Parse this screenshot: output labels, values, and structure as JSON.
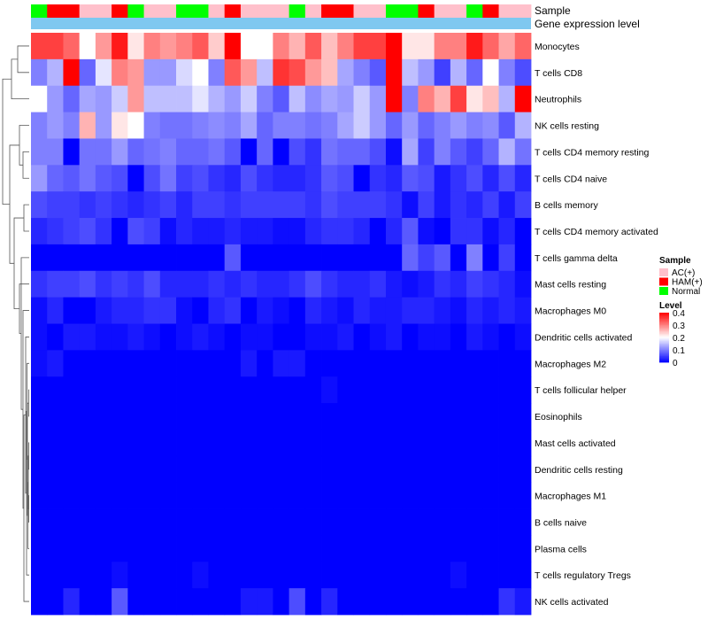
{
  "chart_data": {
    "type": "heatmap",
    "annotation_rows": [
      "Sample",
      "Gene expression level"
    ],
    "sample_groups": [
      "AC(+)",
      "HAM(+)",
      "Normal"
    ],
    "group_colors": {
      "AC(+)": "#FFC0CB",
      "HAM(+)": "#FF0000",
      "Normal": "#00FF00"
    },
    "expression_bar_color": "#7FC8F0",
    "columns": [
      "N",
      "H",
      "H",
      "A",
      "A",
      "H",
      "N",
      "A",
      "A",
      "N",
      "N",
      "A",
      "H",
      "A",
      "A",
      "A",
      "N",
      "A",
      "H",
      "H",
      "A",
      "A",
      "N",
      "N",
      "H",
      "A",
      "A",
      "N",
      "H",
      "A",
      "A"
    ],
    "rows": [
      "Monocytes",
      "T cells CD8",
      "Neutrophils",
      "NK cells resting",
      "T cells CD4 memory resting",
      "T cells CD4 naive",
      "B cells memory",
      "T cells CD4 memory activated",
      "T cells gamma delta",
      "Mast cells resting",
      "Macrophages M0",
      "Dendritic cells activated",
      "Macrophages M2",
      "T cells follicular helper",
      "Eosinophils",
      "Mast cells activated",
      "Dendritic cells resting",
      "Macrophages M1",
      "B cells naive",
      "Plasma cells",
      "T cells regulatory  Tregs",
      "NK cells activated"
    ],
    "values": [
      [
        0.35,
        0.35,
        0.32,
        0.2,
        0.28,
        0.38,
        0.22,
        0.3,
        0.28,
        0.3,
        0.33,
        0.24,
        0.4,
        0.2,
        0.2,
        0.3,
        0.26,
        0.33,
        0.25,
        0.3,
        0.35,
        0.35,
        0.42,
        0.22,
        0.22,
        0.3,
        0.3,
        0.38,
        0.32,
        0.27,
        0.32
      ],
      [
        0.1,
        0.14,
        0.4,
        0.08,
        0.18,
        0.3,
        0.28,
        0.12,
        0.12,
        0.17,
        0.2,
        0.1,
        0.33,
        0.28,
        0.15,
        0.36,
        0.34,
        0.28,
        0.25,
        0.13,
        0.1,
        0.07,
        0.4,
        0.15,
        0.12,
        0.05,
        0.14,
        0.08,
        0.2,
        0.1,
        0.06
      ],
      [
        0.2,
        0.12,
        0.08,
        0.13,
        0.12,
        0.16,
        0.28,
        0.15,
        0.15,
        0.15,
        0.18,
        0.14,
        0.12,
        0.16,
        0.1,
        0.07,
        0.15,
        0.11,
        0.13,
        0.12,
        0.16,
        0.12,
        0.42,
        0.1,
        0.3,
        0.26,
        0.35,
        0.22,
        0.25,
        0.14,
        0.4
      ],
      [
        0.1,
        0.12,
        0.1,
        0.26,
        0.12,
        0.22,
        0.2,
        0.1,
        0.09,
        0.09,
        0.1,
        0.11,
        0.1,
        0.13,
        0.08,
        0.1,
        0.1,
        0.09,
        0.1,
        0.13,
        0.16,
        0.12,
        0.08,
        0.12,
        0.08,
        0.1,
        0.12,
        0.1,
        0.11,
        0.07,
        0.14
      ],
      [
        0.1,
        0.1,
        0.0,
        0.09,
        0.09,
        0.12,
        0.08,
        0.09,
        0.1,
        0.08,
        0.08,
        0.09,
        0.07,
        0.0,
        0.08,
        0.0,
        0.06,
        0.04,
        0.09,
        0.08,
        0.08,
        0.06,
        0.01,
        0.13,
        0.05,
        0.1,
        0.07,
        0.05,
        0.08,
        0.14,
        0.09
      ],
      [
        0.12,
        0.08,
        0.07,
        0.09,
        0.07,
        0.06,
        0.0,
        0.06,
        0.09,
        0.05,
        0.06,
        0.04,
        0.03,
        0.06,
        0.04,
        0.03,
        0.03,
        0.04,
        0.07,
        0.06,
        0.0,
        0.04,
        0.03,
        0.07,
        0.06,
        0.02,
        0.04,
        0.06,
        0.03,
        0.06,
        0.03
      ],
      [
        0.06,
        0.05,
        0.05,
        0.04,
        0.05,
        0.04,
        0.03,
        0.04,
        0.05,
        0.03,
        0.05,
        0.05,
        0.04,
        0.05,
        0.05,
        0.05,
        0.05,
        0.04,
        0.06,
        0.05,
        0.05,
        0.05,
        0.04,
        0.01,
        0.05,
        0.02,
        0.04,
        0.03,
        0.05,
        0.02,
        0.05
      ],
      [
        0.03,
        0.04,
        0.05,
        0.06,
        0.04,
        0.0,
        0.06,
        0.05,
        0.01,
        0.03,
        0.02,
        0.02,
        0.03,
        0.02,
        0.02,
        0.01,
        0.01,
        0.03,
        0.04,
        0.04,
        0.03,
        0.0,
        0.03,
        0.07,
        0.01,
        0.0,
        0.04,
        0.04,
        0.01,
        0.03,
        0.0
      ],
      [
        0.0,
        0.0,
        0.0,
        0.0,
        0.0,
        0.0,
        0.0,
        0.0,
        0.0,
        0.0,
        0.0,
        0.0,
        0.07,
        0.0,
        0.0,
        0.0,
        0.0,
        0.0,
        0.0,
        0.0,
        0.0,
        0.0,
        0.0,
        0.08,
        0.05,
        0.07,
        0.0,
        0.1,
        0.0,
        0.05,
        0.0
      ],
      [
        0.04,
        0.05,
        0.05,
        0.06,
        0.04,
        0.05,
        0.04,
        0.06,
        0.03,
        0.03,
        0.03,
        0.04,
        0.03,
        0.04,
        0.03,
        0.03,
        0.04,
        0.06,
        0.04,
        0.03,
        0.03,
        0.04,
        0.02,
        0.01,
        0.02,
        0.04,
        0.03,
        0.05,
        0.04,
        0.03,
        0.01
      ],
      [
        0.01,
        0.03,
        0.0,
        0.0,
        0.02,
        0.03,
        0.03,
        0.04,
        0.04,
        0.01,
        0.0,
        0.03,
        0.04,
        0.0,
        0.02,
        0.01,
        0.0,
        0.03,
        0.02,
        0.01,
        0.03,
        0.02,
        0.02,
        0.03,
        0.03,
        0.02,
        0.01,
        0.03,
        0.02,
        0.03,
        0.02
      ],
      [
        0.01,
        0.0,
        0.02,
        0.02,
        0.01,
        0.01,
        0.02,
        0.01,
        0.0,
        0.01,
        0.02,
        0.01,
        0.0,
        0.01,
        0.01,
        0.0,
        0.0,
        0.01,
        0.01,
        0.02,
        0.0,
        0.01,
        0.02,
        0.0,
        0.01,
        0.01,
        0.0,
        0.02,
        0.01,
        0.0,
        0.01
      ],
      [
        0.01,
        0.02,
        0.0,
        0.0,
        0.0,
        0.0,
        0.0,
        0.0,
        0.0,
        0.0,
        0.0,
        0.0,
        0.0,
        0.02,
        0.0,
        0.02,
        0.02,
        0.0,
        0.0,
        0.0,
        0.0,
        0.0,
        0.0,
        0.0,
        0.0,
        0.0,
        0.0,
        0.0,
        0.0,
        0.0,
        0.0
      ],
      [
        0.0,
        0.0,
        0.0,
        0.0,
        0.0,
        0.0,
        0.0,
        0.0,
        0.0,
        0.0,
        0.0,
        0.0,
        0.0,
        0.0,
        0.0,
        0.0,
        0.0,
        0.0,
        0.01,
        0.0,
        0.0,
        0.0,
        0.0,
        0.0,
        0.0,
        0.0,
        0.0,
        0.0,
        0.0,
        0.0,
        0.0
      ],
      [
        0.0,
        0.0,
        0.0,
        0.0,
        0.0,
        0.0,
        0.0,
        0.0,
        0.0,
        0.0,
        0.0,
        0.0,
        0.0,
        0.0,
        0.0,
        0.0,
        0.0,
        0.0,
        0.0,
        0.0,
        0.0,
        0.0,
        0.0,
        0.0,
        0.0,
        0.0,
        0.0,
        0.0,
        0.0,
        0.0,
        0.0
      ],
      [
        0.0,
        0.0,
        0.0,
        0.0,
        0.0,
        0.0,
        0.0,
        0.0,
        0.0,
        0.0,
        0.0,
        0.0,
        0.0,
        0.0,
        0.0,
        0.0,
        0.0,
        0.0,
        0.0,
        0.0,
        0.0,
        0.0,
        0.0,
        0.0,
        0.0,
        0.0,
        0.0,
        0.0,
        0.0,
        0.0,
        0.0
      ],
      [
        0.0,
        0.0,
        0.0,
        0.0,
        0.0,
        0.0,
        0.0,
        0.0,
        0.0,
        0.0,
        0.0,
        0.0,
        0.0,
        0.0,
        0.0,
        0.0,
        0.0,
        0.0,
        0.0,
        0.0,
        0.0,
        0.0,
        0.0,
        0.0,
        0.0,
        0.0,
        0.0,
        0.0,
        0.0,
        0.0,
        0.0
      ],
      [
        0.0,
        0.0,
        0.0,
        0.0,
        0.0,
        0.0,
        0.0,
        0.0,
        0.0,
        0.0,
        0.0,
        0.0,
        0.0,
        0.0,
        0.0,
        0.0,
        0.0,
        0.0,
        0.0,
        0.0,
        0.0,
        0.0,
        0.0,
        0.0,
        0.0,
        0.0,
        0.0,
        0.0,
        0.0,
        0.0,
        0.0
      ],
      [
        0.0,
        0.0,
        0.0,
        0.0,
        0.0,
        0.0,
        0.0,
        0.0,
        0.0,
        0.0,
        0.0,
        0.0,
        0.0,
        0.0,
        0.0,
        0.0,
        0.0,
        0.0,
        0.0,
        0.0,
        0.0,
        0.0,
        0.0,
        0.0,
        0.0,
        0.0,
        0.0,
        0.0,
        0.0,
        0.0,
        0.0
      ],
      [
        0.0,
        0.0,
        0.0,
        0.0,
        0.0,
        0.0,
        0.0,
        0.0,
        0.0,
        0.0,
        0.0,
        0.0,
        0.0,
        0.0,
        0.0,
        0.0,
        0.0,
        0.0,
        0.0,
        0.0,
        0.0,
        0.0,
        0.0,
        0.0,
        0.0,
        0.0,
        0.0,
        0.0,
        0.0,
        0.0,
        0.0
      ],
      [
        0.0,
        0.0,
        0.0,
        0.0,
        0.0,
        0.01,
        0.0,
        0.0,
        0.0,
        0.0,
        0.01,
        0.0,
        0.0,
        0.0,
        0.0,
        0.0,
        0.0,
        0.0,
        0.0,
        0.0,
        0.0,
        0.0,
        0.0,
        0.0,
        0.0,
        0.0,
        0.01,
        0.0,
        0.0,
        0.0,
        0.0
      ],
      [
        0.0,
        0.0,
        0.03,
        0.0,
        0.0,
        0.07,
        0.0,
        0.0,
        0.0,
        0.0,
        0.0,
        0.0,
        0.0,
        0.02,
        0.02,
        0.0,
        0.06,
        0.0,
        0.03,
        0.0,
        0.0,
        0.0,
        0.0,
        0.0,
        0.0,
        0.0,
        0.0,
        0.0,
        0.0,
        0.04,
        0.02
      ]
    ],
    "legend": {
      "sample_title": "Sample",
      "sample_entries": [
        "AC(+)",
        "HAM(+)",
        "Normal"
      ],
      "level_title": "Level",
      "level_ticks": [
        "0.4",
        "0.3",
        "0.2",
        "0.1",
        "0"
      ],
      "level_tick_values": [
        0.4,
        0.3,
        0.2,
        0.1,
        0
      ],
      "level_min": 0,
      "level_max": 0.4,
      "color_low": "#0000FF",
      "color_mid": "#FFFFFF",
      "color_high": "#FF0000",
      "placement": "right"
    }
  }
}
